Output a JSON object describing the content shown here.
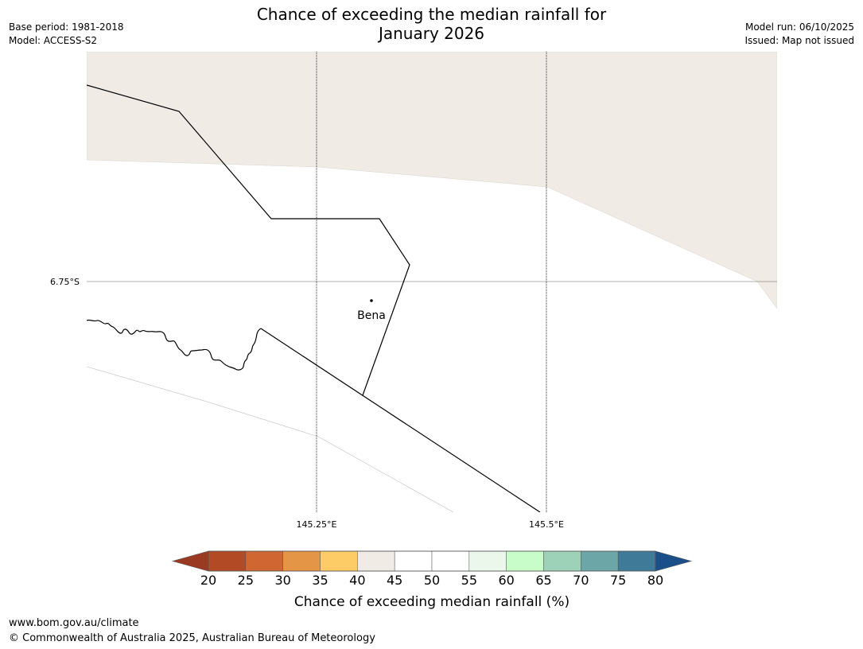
{
  "title": {
    "line1": "Chance of exceeding the median rainfall for",
    "line2": "January 2026"
  },
  "meta_left": {
    "base_period": "Base period: 1981-2018",
    "model": "Model: ACCESS-S2"
  },
  "meta_right": {
    "model_run": "Model run: 06/10/2025",
    "issued": "Issued: Map not issued"
  },
  "map": {
    "latitude_label": "6.75°S",
    "longitude_labels": [
      "145.25°E",
      "145.5°E"
    ],
    "place": "Bena",
    "colors": {
      "shaded_region": "#f0ebe5",
      "boundary": "#000000",
      "gridline": "#000000"
    }
  },
  "colorbar": {
    "title": "Chance of exceeding median rainfall (%)",
    "ticks": [
      "20",
      "25",
      "30",
      "35",
      "40",
      "45",
      "50",
      "55",
      "60",
      "65",
      "70",
      "75",
      "80"
    ],
    "low_extend_color": "#9b3a22",
    "high_extend_color": "#1a4f8a",
    "bins": [
      {
        "from": 20,
        "to": 25,
        "color": "#b24a25"
      },
      {
        "from": 25,
        "to": 30,
        "color": "#d06632"
      },
      {
        "from": 30,
        "to": 35,
        "color": "#e49545"
      },
      {
        "from": 35,
        "to": 40,
        "color": "#fecc66"
      },
      {
        "from": 40,
        "to": 45,
        "color": "#f0ebe5"
      },
      {
        "from": 45,
        "to": 50,
        "color": "#ffffff"
      },
      {
        "from": 50,
        "to": 55,
        "color": "#ffffff"
      },
      {
        "from": 55,
        "to": 60,
        "color": "#eaf7ea"
      },
      {
        "from": 60,
        "to": 65,
        "color": "#c8fcc8"
      },
      {
        "from": 65,
        "to": 70,
        "color": "#9dd1b8"
      },
      {
        "from": 70,
        "to": 75,
        "color": "#6ca6a6"
      },
      {
        "from": 75,
        "to": 80,
        "color": "#3f7a98"
      }
    ]
  },
  "footer": {
    "url": "www.bom.gov.au/climate",
    "copyright": "© Commonwealth of Australia 2025, Australian Bureau of Meteorology"
  }
}
